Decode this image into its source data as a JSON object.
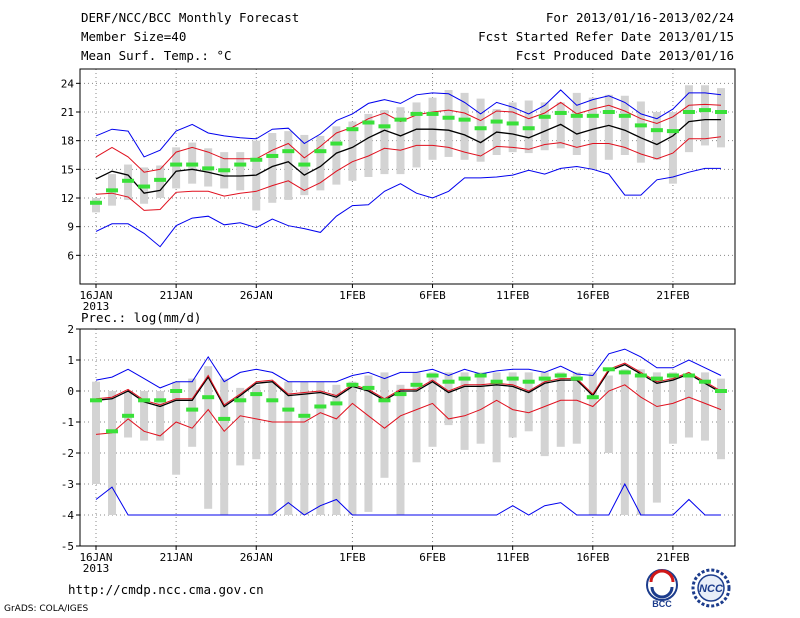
{
  "header": {
    "title": "DERF/NCC/BCC Monthly Forecast",
    "member_size": "Member Size=40",
    "variable": "Mean Surf. Temp.: °C",
    "period": "For 2013/01/16-2013/02/24",
    "start_date": "Fcst Started Refer Date 2013/01/15",
    "produced_date": "Fcst Produced Date 2013/01/16"
  },
  "footer": {
    "url": "http://cmdp.ncc.cma.gov.cn",
    "credit": "GrADS: COLA/IGES",
    "logo_bcc": "BCC",
    "logo_ncc": "NCC"
  },
  "colors": {
    "box": "#d3d3d3",
    "median": "#39e039",
    "mean": "#000000",
    "spread": "#e0101e",
    "extreme": "#0000ee",
    "grid": "#888888"
  },
  "chart_data": [
    {
      "type": "box",
      "title": "Mean Surf. Temp.: °C",
      "xlabel": "",
      "ylabel": "°C",
      "ylim": [
        3,
        25.5
      ],
      "yticks": [
        6,
        9,
        12,
        15,
        18,
        21,
        24
      ],
      "grid": true,
      "x_tick_labels": [
        {
          "day": 1,
          "label": "16JAN",
          "sub": "2013"
        },
        {
          "day": 6,
          "label": "21JAN"
        },
        {
          "day": 11,
          "label": "26JAN"
        },
        {
          "day": 17,
          "label": "1FEB"
        },
        {
          "day": 22,
          "label": "6FEB"
        },
        {
          "day": 27,
          "label": "11FEB"
        },
        {
          "day": 32,
          "label": "16FEB"
        },
        {
          "day": 37,
          "label": "21FEB"
        }
      ],
      "days": 40,
      "box_low": [
        10.5,
        11.2,
        11.8,
        11.4,
        12.0,
        13.0,
        13.5,
        13.2,
        13.0,
        12.8,
        10.7,
        11.5,
        11.8,
        12.3,
        12.8,
        13.4,
        13.8,
        14.2,
        14.5,
        14.5,
        15.2,
        16.0,
        16.3,
        16.0,
        15.8,
        16.5,
        16.8,
        16.7,
        17.0,
        17.2,
        16.5,
        15.0,
        16.0,
        16.5,
        15.7,
        16.0,
        13.5,
        16.8,
        17.5,
        17.3
      ],
      "box_high": [
        12.0,
        14.5,
        15.5,
        15.2,
        15.4,
        17.3,
        17.8,
        17.2,
        16.8,
        16.8,
        18.0,
        18.8,
        19.0,
        18.6,
        18.5,
        19.5,
        20.0,
        20.8,
        21.2,
        21.5,
        22.0,
        22.5,
        23.3,
        23.0,
        22.4,
        21.3,
        22.0,
        22.2,
        22.0,
        22.0,
        23.0,
        22.5,
        22.8,
        22.7,
        22.1,
        21.0,
        21.0,
        23.8,
        23.8,
        23.5
      ],
      "median": [
        11.5,
        12.8,
        13.8,
        13.2,
        13.9,
        15.5,
        15.5,
        15.1,
        14.9,
        15.5,
        16.0,
        16.4,
        16.9,
        15.5,
        16.9,
        17.7,
        19.2,
        19.9,
        19.5,
        20.2,
        20.8,
        20.8,
        20.4,
        20.2,
        19.3,
        20.0,
        19.8,
        19.3,
        20.5,
        20.9,
        20.6,
        20.6,
        21.0,
        20.6,
        19.6,
        19.1,
        19.0,
        21.0,
        21.2,
        21.0
      ],
      "series": [
        {
          "name": "Ens max",
          "color": "#0000ee",
          "values": [
            18.5,
            19.2,
            19.0,
            16.3,
            17.0,
            19.0,
            19.7,
            18.8,
            18.5,
            18.3,
            18.2,
            19.2,
            19.3,
            17.7,
            18.7,
            20.1,
            20.8,
            21.9,
            22.3,
            21.9,
            22.8,
            23.0,
            22.9,
            22.0,
            20.8,
            22.0,
            21.5,
            20.8,
            21.7,
            23.3,
            21.7,
            22.3,
            22.7,
            22.0,
            20.8,
            20.3,
            21.3,
            23.0,
            23.0,
            22.8
          ]
        },
        {
          "name": "Mean+SD",
          "color": "#e0101e",
          "values": [
            16.3,
            17.3,
            16.3,
            14.7,
            15.0,
            16.8,
            17.3,
            16.8,
            16.1,
            16.1,
            16.1,
            17.0,
            17.7,
            16.2,
            17.4,
            18.8,
            19.4,
            20.3,
            20.9,
            20.0,
            20.7,
            21.0,
            21.2,
            20.9,
            20.1,
            21.1,
            21.0,
            20.3,
            20.9,
            22.0,
            20.8,
            21.3,
            21.7,
            21.1,
            20.3,
            19.8,
            20.5,
            21.7,
            21.8,
            21.7
          ]
        },
        {
          "name": "Mean",
          "color": "#000000",
          "values": [
            14.0,
            14.8,
            14.4,
            12.5,
            12.8,
            14.8,
            15.0,
            14.7,
            14.3,
            14.3,
            14.4,
            15.3,
            15.8,
            14.4,
            15.3,
            16.7,
            17.3,
            18.3,
            19.1,
            18.5,
            19.2,
            19.2,
            19.1,
            18.6,
            17.8,
            18.9,
            18.7,
            18.3,
            19.0,
            19.7,
            18.7,
            19.2,
            19.6,
            19.1,
            18.3,
            17.6,
            18.5,
            20.0,
            20.2,
            20.2
          ]
        },
        {
          "name": "Mean-SD",
          "color": "#e0101e",
          "values": [
            12.4,
            12.5,
            12.1,
            10.7,
            10.8,
            12.6,
            12.7,
            12.7,
            12.2,
            12.5,
            12.7,
            13.3,
            13.8,
            12.8,
            13.6,
            14.8,
            15.8,
            16.4,
            17.2,
            17.0,
            17.5,
            17.5,
            17.3,
            16.8,
            16.4,
            17.4,
            17.3,
            17.1,
            17.6,
            17.8,
            17.3,
            17.7,
            17.7,
            17.3,
            16.6,
            16.1,
            16.7,
            18.2,
            18.2,
            18.4
          ]
        },
        {
          "name": "Ens min",
          "color": "#0000ee",
          "values": [
            8.5,
            9.3,
            9.3,
            8.3,
            6.9,
            9.1,
            9.9,
            10.1,
            9.2,
            9.4,
            8.9,
            9.8,
            9.1,
            8.8,
            8.4,
            10.1,
            11.2,
            11.3,
            12.7,
            13.5,
            12.5,
            12.0,
            12.7,
            14.1,
            14.1,
            14.2,
            14.4,
            14.9,
            14.5,
            15.1,
            15.3,
            15.0,
            14.5,
            12.3,
            12.3,
            13.9,
            14.2,
            14.7,
            15.1,
            15.1
          ]
        }
      ]
    },
    {
      "type": "box",
      "title": "Prec.: log(mm/d)",
      "xlabel": "",
      "ylabel": "log(mm/d)",
      "ylim": [
        -5,
        2
      ],
      "yticks": [
        -5,
        -4,
        -3,
        -2,
        -1,
        0,
        1,
        2
      ],
      "grid": true,
      "x_tick_labels": [
        {
          "day": 1,
          "label": "16JAN",
          "sub": "2013"
        },
        {
          "day": 6,
          "label": "21JAN"
        },
        {
          "day": 11,
          "label": "26JAN"
        },
        {
          "day": 17,
          "label": "1FEB"
        },
        {
          "day": 22,
          "label": "6FEB"
        },
        {
          "day": 27,
          "label": "11FEB"
        },
        {
          "day": 32,
          "label": "16FEB"
        },
        {
          "day": 37,
          "label": "21FEB"
        }
      ],
      "days": 40,
      "box_low": [
        -3.0,
        -4.0,
        -1.5,
        -1.6,
        -1.6,
        -2.7,
        -1.8,
        -3.8,
        -4.0,
        -2.4,
        -2.2,
        -4.0,
        -4.0,
        -4.0,
        -4.0,
        -4.0,
        -4.0,
        -3.9,
        -2.8,
        -4.0,
        -2.3,
        -1.8,
        -1.1,
        -1.9,
        -1.7,
        -2.3,
        -1.5,
        -1.3,
        -2.1,
        -1.8,
        -1.7,
        -4.0,
        -2.0,
        -4.0,
        -4.0,
        -3.6,
        -1.7,
        -1.5,
        -1.6,
        -2.2
      ],
      "box_high": [
        0.3,
        0.0,
        0.0,
        0.0,
        0.0,
        0.3,
        0.4,
        0.8,
        0.4,
        0.1,
        0.2,
        0.3,
        0.3,
        0.3,
        0.3,
        0.2,
        0.3,
        0.5,
        0.6,
        0.2,
        0.6,
        0.6,
        0.6,
        0.6,
        0.6,
        0.6,
        0.6,
        0.6,
        0.6,
        0.6,
        0.6,
        0.6,
        0.5,
        0.7,
        0.7,
        0.6,
        0.6,
        0.5,
        0.6,
        0.4
      ],
      "median": [
        -0.3,
        -1.3,
        -0.8,
        -0.3,
        -0.3,
        0.0,
        -0.6,
        -0.2,
        -0.9,
        -0.3,
        -0.1,
        -0.3,
        -0.6,
        -0.8,
        -0.5,
        -0.4,
        0.2,
        0.1,
        -0.3,
        -0.1,
        0.2,
        0.5,
        0.3,
        0.4,
        0.5,
        0.3,
        0.4,
        0.3,
        0.4,
        0.5,
        0.4,
        -0.2,
        0.7,
        0.6,
        0.5,
        0.4,
        0.5,
        0.5,
        0.3,
        0.0
      ],
      "series": [
        {
          "name": "Ens max",
          "color": "#0000ee",
          "values": [
            0.35,
            0.45,
            0.7,
            0.4,
            0.1,
            0.3,
            0.3,
            1.1,
            0.3,
            0.6,
            0.7,
            0.6,
            0.3,
            0.3,
            0.3,
            0.3,
            0.5,
            0.6,
            0.4,
            0.6,
            0.6,
            0.7,
            0.5,
            0.7,
            0.55,
            0.65,
            0.7,
            0.7,
            0.6,
            0.8,
            0.55,
            0.5,
            1.2,
            1.35,
            1.1,
            0.75,
            0.75,
            1.0,
            0.75,
            0.5
          ]
        },
        {
          "name": "Mean",
          "color": "#000000",
          "values": [
            -0.3,
            -0.25,
            0.0,
            -0.35,
            -0.5,
            -0.3,
            -0.3,
            0.45,
            -0.5,
            -0.15,
            0.25,
            0.3,
            -0.15,
            -0.1,
            -0.05,
            -0.2,
            0.15,
            0.0,
            -0.3,
            0.0,
            0.0,
            0.3,
            -0.05,
            0.15,
            0.15,
            0.2,
            0.15,
            -0.05,
            0.25,
            0.35,
            0.35,
            -0.15,
            0.65,
            0.85,
            0.55,
            0.25,
            0.35,
            0.55,
            0.25,
            -0.05
          ]
        },
        {
          "name": "Mean+SD",
          "color": "#e0101e",
          "values": [
            -0.25,
            -0.2,
            0.05,
            -0.3,
            -0.45,
            -0.25,
            -0.25,
            0.5,
            -0.45,
            -0.1,
            0.3,
            0.35,
            -0.1,
            -0.05,
            0.0,
            -0.15,
            0.2,
            0.05,
            -0.25,
            0.05,
            0.05,
            0.35,
            0.0,
            0.2,
            0.2,
            0.25,
            0.2,
            0.0,
            0.3,
            0.4,
            0.4,
            -0.1,
            0.7,
            0.9,
            0.6,
            0.3,
            0.4,
            0.6,
            0.3,
            0.0
          ]
        },
        {
          "name": "Mean-SD",
          "color": "#e0101e",
          "values": [
            -1.4,
            -1.35,
            -0.9,
            -1.3,
            -1.45,
            -1.0,
            -1.2,
            -0.6,
            -1.3,
            -0.8,
            -0.9,
            -1.0,
            -1.0,
            -1.0,
            -0.7,
            -0.9,
            -0.4,
            -0.8,
            -1.2,
            -0.8,
            -0.6,
            -0.4,
            -0.9,
            -0.8,
            -0.6,
            -0.3,
            -0.6,
            -0.7,
            -0.5,
            -0.3,
            -0.3,
            -0.5,
            0.0,
            0.2,
            -0.2,
            -0.5,
            -0.4,
            -0.2,
            -0.4,
            -0.6
          ]
        },
        {
          "name": "Ens min",
          "color": "#0000ee",
          "values": [
            -3.5,
            -3.1,
            -4.0,
            -4.0,
            -4.0,
            -4.0,
            -4.0,
            -4.0,
            -4.0,
            -4.0,
            -4.0,
            -4.0,
            -3.6,
            -4.0,
            -3.7,
            -3.5,
            -4.0,
            -4.0,
            -4.0,
            -4.0,
            -4.0,
            -4.0,
            -4.0,
            -4.0,
            -4.0,
            -4.0,
            -3.7,
            -4.0,
            -3.7,
            -3.6,
            -4.0,
            -4.0,
            -4.0,
            -3.0,
            -4.0,
            -4.0,
            -4.0,
            -3.5,
            -4.0,
            -4.0
          ]
        }
      ]
    }
  ]
}
